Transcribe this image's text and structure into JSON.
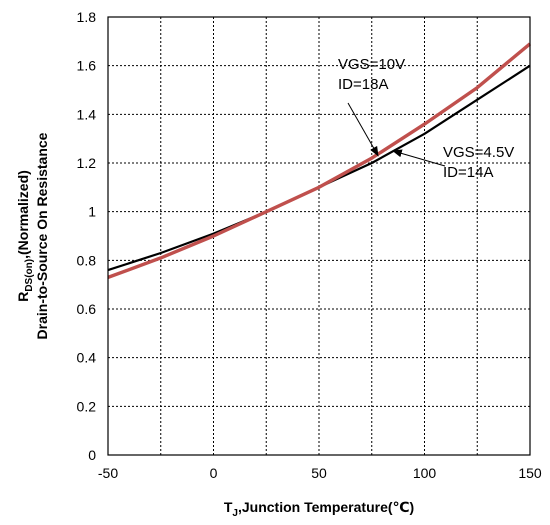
{
  "chart_data": {
    "type": "line",
    "xlabel": {
      "main": "T",
      "sub": "J",
      "rest": ",Junction Temperature(℃)"
    },
    "ylabel": {
      "line1_main": "R",
      "line1_sub": "DS(on)",
      "line1_rest": ",(Normalized)",
      "line2": "Drain-to-Source On Resistance"
    },
    "xlim": [
      -50,
      150
    ],
    "ylim": [
      0,
      1.8
    ],
    "x_ticks": [
      -50,
      0,
      50,
      100,
      150
    ],
    "x_tick_labels": [
      "-50",
      "0",
      "50",
      "100",
      "150"
    ],
    "y_ticks": [
      0,
      0.2,
      0.4,
      0.6,
      0.8,
      1,
      1.2,
      1.4,
      1.6,
      1.8
    ],
    "y_tick_labels": [
      "0",
      "0.2",
      "0.4",
      "0.6",
      "0.8",
      "1",
      "1.2",
      "1.4",
      "1.6",
      "1.8"
    ],
    "x_minor_grid": [
      -25,
      25,
      75,
      125
    ],
    "grid": true,
    "series": [
      {
        "color": "#000000",
        "x": [
          -50,
          -25,
          0,
          25,
          50,
          75,
          100,
          125,
          150
        ],
        "y": [
          0.76,
          0.83,
          0.91,
          1.0,
          1.1,
          1.2,
          1.32,
          1.46,
          1.6
        ]
      },
      {
        "color": "#c0504d",
        "x": [
          -50,
          -25,
          0,
          25,
          50,
          75,
          100,
          125,
          150
        ],
        "y": [
          0.73,
          0.81,
          0.9,
          1.0,
          1.1,
          1.22,
          1.36,
          1.51,
          1.69
        ]
      }
    ],
    "annotations": [
      {
        "lines": [
          "VGS=10V",
          "ID=18A"
        ],
        "arrow_to": [
          78,
          1.23
        ]
      },
      {
        "lines": [
          "VGS=4.5V",
          "ID=14A"
        ],
        "arrow_to": [
          85,
          1.25
        ]
      }
    ]
  }
}
